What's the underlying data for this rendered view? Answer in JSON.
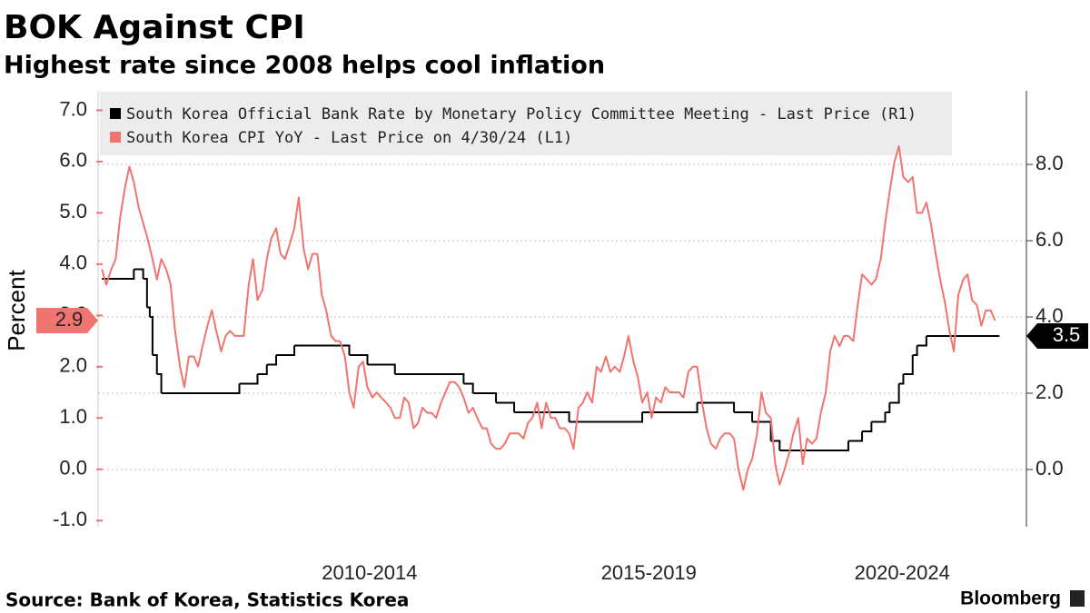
{
  "chart_data": {
    "type": "line",
    "title": "BOK Against CPI",
    "subtitle": "Highest rate since 2008 helps cool inflation",
    "ylabel": "Percent",
    "xlim": [
      2007.93,
      2024.82
    ],
    "ylim": [
      -1.12,
      7.38
    ],
    "y2lim": [
      -1.5,
      9.93
    ],
    "yticks": [
      {
        "value": -1,
        "label": "-1.0"
      },
      {
        "value": 0,
        "label": "0.0"
      },
      {
        "value": 1,
        "label": "1.0"
      },
      {
        "value": 2,
        "label": "2.0"
      },
      {
        "value": 3,
        "label": "3.0"
      },
      {
        "value": 4,
        "label": "4.0"
      },
      {
        "value": 5,
        "label": "5.0"
      },
      {
        "value": 6,
        "label": "6.0"
      },
      {
        "value": 7,
        "label": "7.0"
      }
    ],
    "y2ticks": [
      {
        "value": 0,
        "label": "0.0"
      },
      {
        "value": 2,
        "label": "2.0"
      },
      {
        "value": 4,
        "label": "4.0"
      },
      {
        "value": 6,
        "label": "6.0"
      },
      {
        "value": 8,
        "label": "8.0"
      }
    ],
    "xticks": [
      {
        "value": 2012.87,
        "label": "2010-2014"
      },
      {
        "value": 2017.95,
        "label": "2015-2019"
      },
      {
        "value": 2022.56,
        "label": "2020-2024"
      }
    ],
    "grid": "y2",
    "series": [
      {
        "name": "South Korea Official Bank Rate by Monetary Policy Committee Meeting - Last Price (R1)",
        "color": "#000000",
        "axis": "y2",
        "step": true,
        "x": [
          2008.0,
          2008.58,
          2008.75,
          2008.82,
          2008.87,
          2008.92,
          2009.0,
          2009.08,
          2010.5,
          2010.83,
          2011.0,
          2011.17,
          2011.5,
          2012.5,
          2012.83,
          2013.33,
          2014.58,
          2014.75,
          2015.17,
          2015.5,
          2016.5,
          2017.83,
          2018.83,
          2019.5,
          2019.83,
          2020.17,
          2020.33,
          2021.58,
          2021.83,
          2022.0,
          2022.25,
          2022.33,
          2022.5,
          2022.58,
          2022.75,
          2022.83,
          2023.0,
          2024.33
        ],
        "values": [
          5.0,
          5.25,
          5.0,
          4.25,
          4.0,
          3.0,
          2.5,
          2.0,
          2.25,
          2.5,
          2.75,
          3.0,
          3.25,
          3.0,
          2.75,
          2.5,
          2.25,
          2.0,
          1.75,
          1.5,
          1.25,
          1.5,
          1.75,
          1.5,
          1.25,
          0.75,
          0.5,
          0.75,
          1.0,
          1.25,
          1.5,
          1.75,
          2.25,
          2.5,
          3.0,
          3.25,
          3.5,
          3.5
        ]
      },
      {
        "name": "South Korea CPI YoY - Last Price on 4/30/24 (L1)",
        "color": "#f07470",
        "axis": "y",
        "x": [
          2008.0,
          2008.08,
          2008.17,
          2008.25,
          2008.33,
          2008.42,
          2008.5,
          2008.58,
          2008.67,
          2008.75,
          2008.83,
          2008.92,
          2009.0,
          2009.08,
          2009.17,
          2009.25,
          2009.33,
          2009.42,
          2009.5,
          2009.58,
          2009.67,
          2009.75,
          2009.83,
          2009.92,
          2010.0,
          2010.08,
          2010.17,
          2010.25,
          2010.33,
          2010.42,
          2010.5,
          2010.58,
          2010.67,
          2010.75,
          2010.83,
          2010.92,
          2011.0,
          2011.08,
          2011.17,
          2011.25,
          2011.33,
          2011.42,
          2011.5,
          2011.58,
          2011.67,
          2011.75,
          2011.83,
          2011.92,
          2012.0,
          2012.08,
          2012.17,
          2012.25,
          2012.33,
          2012.42,
          2012.5,
          2012.58,
          2012.67,
          2012.75,
          2012.83,
          2012.92,
          2013.0,
          2013.08,
          2013.17,
          2013.25,
          2013.33,
          2013.42,
          2013.5,
          2013.58,
          2013.67,
          2013.75,
          2013.83,
          2013.92,
          2014.0,
          2014.08,
          2014.17,
          2014.25,
          2014.33,
          2014.42,
          2014.5,
          2014.58,
          2014.67,
          2014.75,
          2014.83,
          2014.92,
          2015.0,
          2015.08,
          2015.17,
          2015.25,
          2015.33,
          2015.42,
          2015.5,
          2015.58,
          2015.67,
          2015.75,
          2015.83,
          2015.92,
          2016.0,
          2016.08,
          2016.17,
          2016.25,
          2016.33,
          2016.42,
          2016.5,
          2016.58,
          2016.67,
          2016.75,
          2016.83,
          2016.92,
          2017.0,
          2017.08,
          2017.17,
          2017.25,
          2017.33,
          2017.42,
          2017.5,
          2017.58,
          2017.67,
          2017.75,
          2017.83,
          2017.92,
          2018.0,
          2018.08,
          2018.17,
          2018.25,
          2018.33,
          2018.42,
          2018.5,
          2018.58,
          2018.67,
          2018.75,
          2018.83,
          2018.92,
          2019.0,
          2019.08,
          2019.17,
          2019.25,
          2019.33,
          2019.42,
          2019.5,
          2019.58,
          2019.67,
          2019.75,
          2019.83,
          2019.92,
          2020.0,
          2020.08,
          2020.17,
          2020.25,
          2020.33,
          2020.42,
          2020.5,
          2020.58,
          2020.67,
          2020.75,
          2020.83,
          2020.92,
          2021.0,
          2021.08,
          2021.17,
          2021.25,
          2021.33,
          2021.42,
          2021.5,
          2021.58,
          2021.67,
          2021.75,
          2021.83,
          2021.92,
          2022.0,
          2022.08,
          2022.17,
          2022.25,
          2022.33,
          2022.42,
          2022.5,
          2022.58,
          2022.67,
          2022.75,
          2022.83,
          2022.92,
          2023.0,
          2023.08,
          2023.17,
          2023.25,
          2023.33,
          2023.42,
          2023.5,
          2023.58,
          2023.67,
          2023.75,
          2023.83,
          2023.92,
          2024.0,
          2024.08,
          2024.17,
          2024.25
        ],
        "values": [
          3.9,
          3.6,
          3.9,
          4.1,
          4.9,
          5.5,
          5.9,
          5.6,
          5.1,
          4.8,
          4.5,
          4.1,
          3.7,
          4.1,
          3.9,
          3.6,
          2.7,
          2.0,
          1.6,
          2.2,
          2.2,
          2.0,
          2.4,
          2.8,
          3.1,
          2.7,
          2.3,
          2.6,
          2.7,
          2.6,
          2.6,
          2.6,
          3.6,
          4.1,
          3.3,
          3.5,
          4.1,
          4.5,
          4.7,
          4.2,
          4.1,
          4.4,
          4.7,
          5.3,
          4.3,
          3.9,
          4.2,
          4.2,
          3.4,
          3.1,
          2.6,
          2.5,
          2.5,
          2.2,
          1.5,
          1.2,
          2.0,
          2.1,
          1.6,
          1.4,
          1.5,
          1.4,
          1.3,
          1.2,
          1.0,
          1.0,
          1.4,
          1.3,
          0.8,
          0.9,
          1.2,
          1.1,
          1.1,
          1.0,
          1.3,
          1.5,
          1.7,
          1.7,
          1.6,
          1.4,
          1.1,
          1.2,
          1.0,
          0.8,
          0.8,
          0.5,
          0.4,
          0.4,
          0.5,
          0.7,
          0.7,
          0.7,
          0.6,
          0.9,
          1.0,
          1.3,
          0.8,
          1.3,
          1.0,
          1.0,
          0.8,
          0.8,
          0.7,
          0.4,
          1.2,
          1.3,
          1.5,
          1.3,
          2.0,
          1.9,
          2.2,
          1.9,
          2.0,
          1.9,
          2.2,
          2.6,
          2.1,
          1.8,
          1.3,
          1.5,
          1.0,
          1.4,
          1.3,
          1.6,
          1.5,
          1.5,
          1.5,
          1.4,
          1.9,
          2.0,
          2.0,
          1.3,
          0.8,
          0.5,
          0.4,
          0.6,
          0.7,
          0.7,
          0.6,
          0.0,
          -0.4,
          0.0,
          0.2,
          0.7,
          1.5,
          1.1,
          1.0,
          0.1,
          -0.3,
          0.0,
          0.3,
          0.7,
          1.0,
          0.1,
          0.6,
          0.5,
          0.6,
          1.1,
          1.5,
          2.3,
          2.6,
          2.4,
          2.6,
          2.6,
          2.5,
          3.2,
          3.8,
          3.7,
          3.6,
          3.7,
          4.1,
          4.8,
          5.4,
          6.0,
          6.3,
          5.7,
          5.6,
          5.7,
          5.0,
          5.0,
          5.2,
          4.8,
          4.2,
          3.7,
          3.3,
          2.7,
          2.3,
          3.4,
          3.7,
          3.8,
          3.3,
          3.2,
          2.8,
          3.1,
          3.1,
          2.9
        ]
      }
    ]
  },
  "footer": {
    "source": "Source: Bank of Korea, Statistics Korea",
    "brand": "Bloomberg"
  }
}
